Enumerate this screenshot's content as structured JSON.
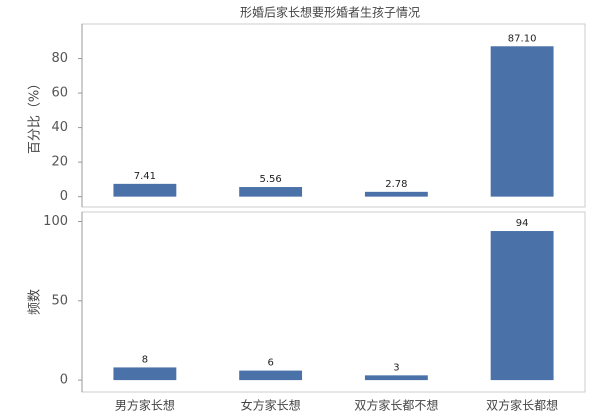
{
  "chart_data": [
    {
      "type": "bar",
      "title": "形婚后家长想要形婚者生孩子情况",
      "ylabel": "百分比（%）",
      "values": [
        7.41,
        5.56,
        2.78,
        87.1
      ],
      "value_labels": [
        "7.41",
        "5.56",
        "2.78",
        "87.10"
      ],
      "color": "#4a72a8",
      "ylim": [
        -6,
        100
      ],
      "yticks": [
        0,
        20,
        40,
        60,
        80
      ]
    },
    {
      "type": "bar",
      "ylabel": "频数",
      "categories": [
        "男方家长想",
        "女方家长想",
        "双方家长都不想",
        "双方家长都想"
      ],
      "values": [
        8,
        6,
        3,
        94
      ],
      "color": "#4a72a8",
      "ylim": [
        -7.5,
        106
      ],
      "yticks": [
        0,
        50,
        100
      ]
    }
  ]
}
